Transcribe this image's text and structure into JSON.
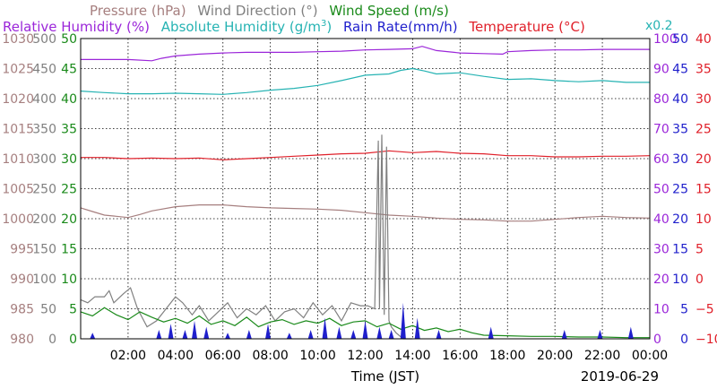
{
  "header": {
    "row1": [
      {
        "text": "Pressure (hPa)",
        "color": "#a67f7f"
      },
      {
        "text": "Wind Direction (°)",
        "color": "#808080"
      },
      {
        "text": "Wind Speed (m/s)",
        "color": "#1a8a1a"
      }
    ],
    "row2": [
      {
        "text": "Relative Humidity (%)",
        "color": "#9b26d9"
      },
      {
        "text": "Absolute Humidity (g/m",
        "sup": "3",
        "tail": ")",
        "color": "#26b3b3"
      },
      {
        "text": "Rain Rate(mm/h)",
        "color": "#1f1fcc"
      },
      {
        "text": "Temperature (°C)",
        "color": "#e0202a"
      }
    ],
    "scale_note": "x0.2",
    "scale_note_color": "#26b3b3"
  },
  "footer": {
    "xlabel": "Time (JST)",
    "date": "2019-06-29"
  },
  "chart_data": {
    "type": "line",
    "title": "",
    "xlabel": "Time (JST)",
    "date": "2019-06-29",
    "xlim": [
      0,
      24
    ],
    "x_tick_labels": [
      "02:00",
      "04:00",
      "06:00",
      "08:00",
      "10:00",
      "12:00",
      "14:00",
      "16:00",
      "18:00",
      "20:00",
      "22:00",
      "00:00"
    ],
    "x_ticks_hours": [
      2,
      4,
      6,
      8,
      10,
      12,
      14,
      16,
      18,
      20,
      22,
      24
    ],
    "grid": true,
    "axes": {
      "pressure": {
        "label": "Pressure (hPa)",
        "color": "#a67f7f",
        "side": "left",
        "ylim": [
          980,
          1030
        ],
        "ticks": [
          "980",
          "985",
          "990",
          "995",
          "1000",
          "1005",
          "1010",
          "1015",
          "1020",
          "1025",
          "1030"
        ]
      },
      "wind_dir": {
        "label": "Wind Direction (°)",
        "color": "#808080",
        "side": "left",
        "ylim": [
          0,
          500
        ],
        "ticks": [
          "0",
          "50",
          "100",
          "150",
          "200",
          "250",
          "300",
          "350",
          "400",
          "450",
          "500"
        ]
      },
      "wind_speed": {
        "label": "Wind Speed (m/s)",
        "color": "#1a8a1a",
        "side": "left",
        "ylim": [
          0,
          50
        ],
        "ticks": [
          "0",
          "5",
          "10",
          "15",
          "20",
          "25",
          "30",
          "35",
          "40",
          "45",
          "50"
        ]
      },
      "rel_hum": {
        "label": "Relative Humidity (%)",
        "color": "#9b26d9",
        "side": "right",
        "ylim": [
          0,
          100
        ],
        "ticks": [
          "0",
          "10",
          "20",
          "30",
          "40",
          "50",
          "60",
          "70",
          "80",
          "90",
          "100"
        ]
      },
      "rain": {
        "label": "Rain Rate(mm/h)",
        "color": "#1f1fcc",
        "side": "right",
        "ylim": [
          0,
          50
        ],
        "ticks": [
          "0",
          "5",
          "10",
          "15",
          "20",
          "25",
          "30",
          "35",
          "40",
          "45",
          "50"
        ]
      },
      "temp": {
        "label": "Temperature (°C)",
        "color": "#e0202a",
        "side": "right",
        "ylim": [
          -10,
          40
        ],
        "ticks": [
          "−10",
          "−5",
          "0",
          "5",
          "10",
          "15",
          "20",
          "25",
          "30",
          "35",
          "40"
        ]
      }
    },
    "series": [
      {
        "name": "Pressure (hPa)",
        "axis": "pressure",
        "color": "#a67f7f",
        "x": [
          0,
          0.5,
          1,
          1.5,
          2,
          2.5,
          3,
          4,
          5,
          6,
          7,
          8,
          9,
          10,
          11,
          12,
          13,
          14,
          15,
          16,
          17,
          18,
          19,
          20,
          21,
          22,
          23,
          24
        ],
        "y": [
          1001.8,
          1001.2,
          1000.6,
          1000.4,
          1000.2,
          1000.7,
          1001.3,
          1002.0,
          1002.3,
          1002.3,
          1002.0,
          1001.8,
          1001.7,
          1001.6,
          1001.4,
          1001.0,
          1000.6,
          1000.4,
          1000.1,
          999.9,
          999.8,
          999.6,
          999.6,
          999.9,
          1000.2,
          1000.4,
          1000.2,
          1000.1
        ]
      },
      {
        "name": "Relative Humidity (%)",
        "axis": "rel_hum",
        "color": "#9b26d9",
        "x": [
          0,
          1,
          2,
          3,
          3.4,
          4,
          5,
          6,
          7,
          8,
          9,
          10,
          11,
          12,
          13,
          14,
          14.4,
          15,
          16,
          17,
          17.8,
          18,
          19,
          20,
          21,
          22,
          23,
          24
        ],
        "y": [
          93.0,
          93.0,
          93.0,
          92.6,
          93.4,
          94.2,
          94.8,
          95.2,
          95.4,
          95.4,
          95.4,
          95.6,
          95.8,
          96.2,
          96.4,
          96.6,
          97.4,
          96.0,
          95.2,
          95.0,
          94.8,
          95.6,
          96.0,
          96.2,
          96.2,
          96.4,
          96.4,
          96.4
        ]
      },
      {
        "name": "Absolute Humidity (g/m3) x0.2",
        "axis": "rel_hum",
        "color": "#26b3b3",
        "x": [
          0,
          1,
          2,
          3,
          4,
          5,
          6,
          7,
          8,
          9,
          10,
          11,
          12,
          13,
          13.5,
          14,
          14.5,
          15,
          16,
          17,
          18,
          19,
          20,
          21,
          22,
          23,
          24
        ],
        "y": [
          82.5,
          82.0,
          81.6,
          81.6,
          81.8,
          81.6,
          81.4,
          82.0,
          82.8,
          83.4,
          84.4,
          86.0,
          87.8,
          88.2,
          89.4,
          90.0,
          89.2,
          88.2,
          88.6,
          87.4,
          86.4,
          86.6,
          86.0,
          85.6,
          86.0,
          85.4,
          85.4
        ]
      },
      {
        "name": "Temperature (°C)",
        "axis": "temp",
        "color": "#e0202a",
        "x": [
          0,
          1,
          2,
          3,
          4,
          5,
          6,
          7,
          8,
          9,
          10,
          11,
          12,
          13,
          14,
          15,
          16,
          17,
          18,
          19,
          20,
          21,
          22,
          23,
          24
        ],
        "y": [
          20.2,
          20.2,
          20.0,
          20.1,
          20.0,
          20.1,
          19.8,
          20.0,
          20.2,
          20.4,
          20.6,
          20.8,
          20.9,
          21.3,
          21.0,
          21.2,
          20.9,
          20.8,
          20.5,
          20.5,
          20.3,
          20.3,
          20.4,
          20.4,
          20.5
        ]
      },
      {
        "name": "Wind Direction (°)",
        "axis": "wind_dir",
        "color": "#808080",
        "x": [
          0,
          0.3,
          0.6,
          1.0,
          1.2,
          1.4,
          1.8,
          2.1,
          2.4,
          2.8,
          3.2,
          3.6,
          4.0,
          4.3,
          4.7,
          5.0,
          5.4,
          5.8,
          6.2,
          6.6,
          7.0,
          7.4,
          7.8,
          8.2,
          8.6,
          9.0,
          9.4,
          9.8,
          10.2,
          10.6,
          11.0,
          11.4,
          11.8,
          12.1,
          12.4,
          12.55,
          12.6,
          12.7,
          12.8,
          12.9,
          13.0,
          13.1,
          13.3,
          13.6,
          14.0
        ],
        "y": [
          65,
          60,
          70,
          70,
          80,
          60,
          75,
          85,
          50,
          20,
          30,
          50,
          70,
          60,
          40,
          55,
          30,
          45,
          60,
          35,
          50,
          40,
          55,
          30,
          45,
          50,
          35,
          60,
          40,
          55,
          30,
          60,
          55,
          55,
          50,
          330,
          50,
          340,
          40,
          320,
          30,
          20,
          10,
          0,
          0
        ]
      },
      {
        "name": "Wind Speed (m/s)",
        "axis": "wind_speed",
        "color": "#1a8a1a",
        "x": [
          0,
          0.5,
          1,
          1.5,
          2,
          2.5,
          3,
          3.5,
          4,
          4.5,
          5,
          5.5,
          6,
          6.5,
          7,
          7.5,
          8,
          8.5,
          9,
          9.5,
          10,
          10.5,
          11,
          11.5,
          12,
          12.5,
          13,
          13.5,
          14,
          14.5,
          15,
          15.5,
          16,
          16.5,
          17,
          18,
          19,
          20,
          21,
          22,
          23,
          24
        ],
        "y": [
          4.5,
          3.8,
          5.2,
          4.0,
          3.2,
          4.5,
          3.6,
          2.8,
          3.4,
          2.6,
          3.8,
          2.4,
          3.0,
          2.2,
          3.6,
          2.0,
          2.8,
          3.2,
          2.4,
          3.0,
          2.6,
          3.4,
          2.2,
          2.8,
          3.0,
          2.0,
          2.6,
          1.6,
          2.2,
          1.4,
          1.8,
          1.2,
          1.6,
          1.0,
          0.6,
          0.5,
          0.4,
          0.4,
          0.3,
          0.3,
          0.2,
          0.2
        ]
      },
      {
        "name": "Rain Rate(mm/h)",
        "axis": "rain",
        "color": "#1f1fcc",
        "kind": "spikes",
        "x": [
          0.5,
          3.3,
          3.8,
          4.4,
          4.8,
          5.3,
          6.2,
          7.1,
          7.9,
          8.8,
          9.7,
          10.3,
          10.9,
          11.5,
          12.0,
          12.6,
          13.1,
          13.6,
          14.2,
          15.1,
          17.3,
          20.4,
          21.9,
          23.2
        ],
        "y": [
          1.0,
          1.5,
          2.5,
          1.5,
          3.0,
          2.0,
          1.0,
          1.5,
          2.5,
          1.0,
          1.5,
          3.5,
          2.0,
          1.5,
          3.0,
          2.0,
          1.5,
          6.0,
          3.5,
          1.5,
          2.0,
          1.5,
          1.5,
          2.0
        ]
      }
    ]
  }
}
